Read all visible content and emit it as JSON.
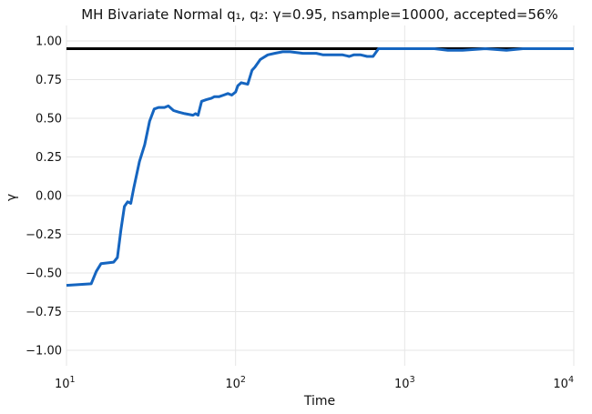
{
  "chart_data": {
    "type": "line",
    "title": "MH Bivariate Normal q₁, q₂: γ=0.95, nsample=10000, accepted=56%",
    "xlabel": "Time",
    "ylabel": "γ",
    "xscale": "log",
    "xlim": [
      10,
      10000
    ],
    "ylim": [
      -1.1,
      1.1
    ],
    "grid": true,
    "x_ticks": [
      {
        "value": 10,
        "base": "10",
        "exp": "1"
      },
      {
        "value": 100,
        "base": "10",
        "exp": "2"
      },
      {
        "value": 1000,
        "base": "10",
        "exp": "3"
      },
      {
        "value": 10000,
        "base": "10",
        "exp": "4"
      }
    ],
    "y_ticks": [
      "1.00",
      "0.75",
      "0.50",
      "0.25",
      "0.00",
      "−0.25",
      "−0.50",
      "−0.75",
      "−1.00"
    ],
    "y_tick_values": [
      1.0,
      0.75,
      0.5,
      0.25,
      0.0,
      -0.25,
      -0.5,
      -0.75,
      -1.0
    ],
    "reference_line": {
      "y": 0.95,
      "color": "#000000"
    },
    "series": [
      {
        "color": "#1565c0",
        "x": [
          10,
          14,
          15,
          16,
          19,
          20,
          21,
          22,
          23,
          24,
          25,
          27,
          29,
          31,
          33,
          35,
          38,
          40,
          43,
          46,
          50,
          56,
          58,
          60,
          63,
          67,
          72,
          75,
          80,
          85,
          90,
          95,
          100,
          103,
          108,
          118,
          125,
          130,
          140,
          155,
          170,
          190,
          210,
          250,
          300,
          330,
          360,
          400,
          430,
          470,
          500,
          550,
          600,
          650,
          700,
          800,
          1000,
          1200,
          1500,
          1800,
          2200,
          3000,
          4000,
          5000,
          6000,
          8000,
          10000
        ],
        "y": [
          -0.58,
          -0.57,
          -0.49,
          -0.44,
          -0.43,
          -0.4,
          -0.22,
          -0.07,
          -0.04,
          -0.05,
          0.05,
          0.22,
          0.33,
          0.48,
          0.56,
          0.57,
          0.57,
          0.58,
          0.55,
          0.54,
          0.53,
          0.52,
          0.53,
          0.52,
          0.61,
          0.62,
          0.63,
          0.64,
          0.64,
          0.65,
          0.66,
          0.65,
          0.67,
          0.71,
          0.73,
          0.72,
          0.81,
          0.83,
          0.88,
          0.91,
          0.92,
          0.93,
          0.93,
          0.92,
          0.92,
          0.91,
          0.91,
          0.91,
          0.91,
          0.9,
          0.91,
          0.91,
          0.9,
          0.9,
          0.95,
          0.95,
          0.95,
          0.95,
          0.95,
          0.94,
          0.94,
          0.95,
          0.94,
          0.95,
          0.95,
          0.95,
          0.95
        ]
      }
    ]
  }
}
